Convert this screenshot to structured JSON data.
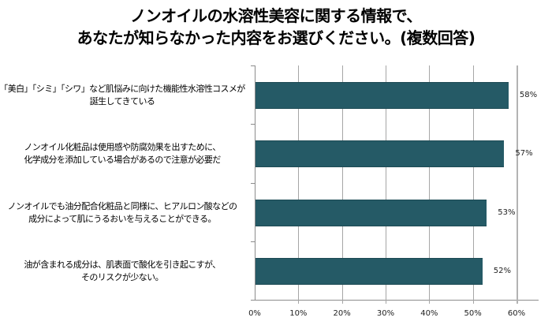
{
  "title_lines": [
    "ノンオイルの水溶性美容に関する情報で、",
    "あなたが知らなかった内容をお選びください。(複数回答)"
  ],
  "colors": {
    "bar": "#255a66",
    "axis": "#8c8c8c",
    "grid": "#a6a6a6"
  },
  "chart_data": {
    "type": "bar",
    "orientation": "horizontal",
    "title": "ノンオイルの水溶性美容に関する情報で、あなたが知らなかった内容をお選びください。(複数回答)",
    "categories": [
      [
        "「美白」「シミ」「シワ」など肌悩みに向けた機能性水溶性コスメが",
        "誕生してきている"
      ],
      [
        "ノンオイル化粧品は使用感や防腐効果を出すために、",
        "化学成分を添加している場合があるので注意が必要だ"
      ],
      [
        "ノンオイルでも油分配合化粧品と同様に、ヒアルロン酸などの",
        "成分によって肌にうるおいを与えることができる。"
      ],
      [
        "油が含まれる成分は、肌表面で酸化を引き起こすが、",
        "そのリスクが少ない。"
      ]
    ],
    "values": [
      58,
      57,
      53,
      52
    ],
    "value_labels": [
      "58%",
      "57%",
      "53%",
      "52%"
    ],
    "xlim": [
      0,
      60
    ],
    "xticks": [
      "0%",
      "10%",
      "20%",
      "30%",
      "40%",
      "50%",
      "60%"
    ],
    "grid": true,
    "legend": null
  }
}
